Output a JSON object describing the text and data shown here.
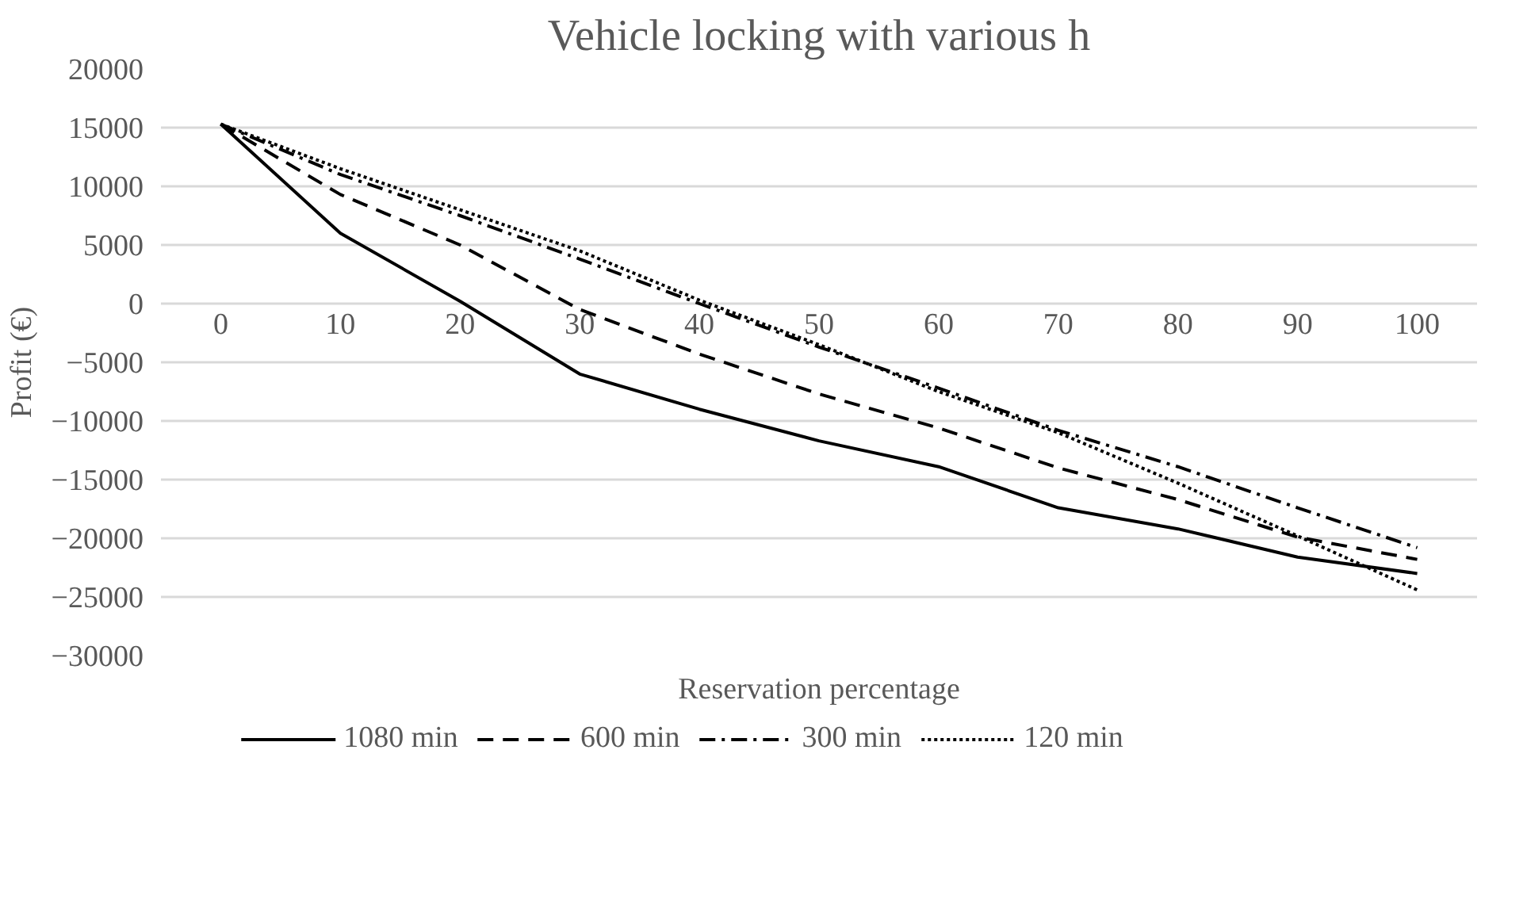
{
  "chart_data": {
    "type": "line",
    "title": "Vehicle locking with various h",
    "xlabel": "Reservation percentage",
    "ylabel": "Profit (€)",
    "categories": [
      "0",
      "10",
      "20",
      "30",
      "40",
      "50",
      "60",
      "70",
      "80",
      "90",
      "100"
    ],
    "ylim": [
      -30000,
      20000
    ],
    "yticks": [
      -30000,
      -25000,
      -20000,
      -15000,
      -10000,
      -5000,
      0,
      5000,
      10000,
      15000,
      20000
    ],
    "grid": "y",
    "legend": "bottom",
    "marker": "none",
    "series": [
      {
        "name": "1080 min",
        "color": "#000000",
        "line_style": "solid",
        "values": [
          15300,
          6000,
          200,
          -6000,
          -9000,
          -11700,
          -13900,
          -17400,
          -19200,
          -21600,
          -23000
        ]
      },
      {
        "name": "600 min",
        "color": "#000000",
        "line_style": "dashed",
        "values": [
          15300,
          9300,
          5000,
          -500,
          -4300,
          -7700,
          -10600,
          -14000,
          -16700,
          -19900,
          -21800
        ]
      },
      {
        "name": "300 min",
        "color": "#000000",
        "line_style": "dashdot",
        "values": [
          15300,
          11000,
          7500,
          3800,
          0,
          -3700,
          -7200,
          -10800,
          -13900,
          -17400,
          -20800
        ]
      },
      {
        "name": "120 min",
        "color": "#000000",
        "line_style": "dotted",
        "values": [
          15300,
          11500,
          8000,
          4500,
          300,
          -3500,
          -7500,
          -11000,
          -15300,
          -19800,
          -24400
        ]
      }
    ]
  }
}
